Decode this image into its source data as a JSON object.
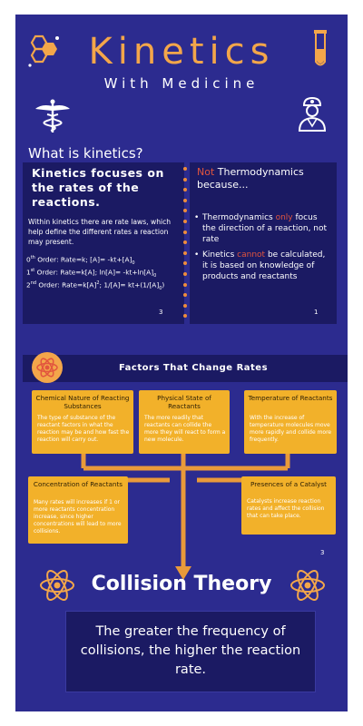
{
  "header": {
    "title": "Kinetics",
    "subtitle": "With Medicine",
    "icons": [
      "molecule-icon",
      "test-tube-icon",
      "caduceus-icon",
      "doctor-icon"
    ]
  },
  "what": {
    "heading": "What is kinetics?",
    "left": {
      "headline": "Kinetics focuses on the rates of the reactions.",
      "body": "Within kinetics there are rate laws, which help define the different rates a reaction may present.",
      "law0": {
        "ord": "0",
        "sup": "th",
        "text": " Order: Rate=k; [A]= -kt+[A]",
        "sub": "0"
      },
      "law1": {
        "ord": "1",
        "sup": "st",
        "text": " Order: Rate=k[A]; ln[A]= -kt+ln[A]",
        "sub": "0"
      },
      "law2": {
        "ord": "2",
        "sup": "nd",
        "text": " Order: Rate=k[A]",
        "sup2": "2",
        "text2": "; 1/[A]= kt+(1/[A]",
        "sub": "0",
        "end": ")"
      },
      "page": "3"
    },
    "right": {
      "not": "Not",
      "rest": " Thermodynamics because...",
      "bullet1_a": "Thermodynamics ",
      "bullet1_only": "only",
      "bullet1_b": " focus the direction of a reaction, not rate",
      "bullet2_a": "Kinetics ",
      "bullet2_cannot": "cannot",
      "bullet2_b": " be calculated, it is based on knowledge of products and reactants",
      "page": "1"
    }
  },
  "factors": {
    "heading": "Factors That Change Rates",
    "cards": [
      {
        "title": "Chemical Nature of Reacting Substances",
        "body": "The type of substance of the reactant factors in what the reaction may be and how fast the reaction will carry out."
      },
      {
        "title": "Physical State of Reactants",
        "body": "The more readily that reactants can collide the more they will react to form a new molecule."
      },
      {
        "title": "Temperature of Reactants",
        "body": "With the increase of temperature molecules move more rapidly and collide more frequently."
      },
      {
        "title": "Concentration of Reactants",
        "body": "Many rates will increases if 1 or more reactants concentration increase, since higher concentrations will lead to more collisions."
      },
      {
        "title": "Presences of a Catalyst",
        "body": "Catalysts increase reaction rates and affect the collision that can take place."
      }
    ],
    "page": "3"
  },
  "collision": {
    "heading": "Collision Theory",
    "statement": "The greater the frequency of collisions, the higher the reaction rate."
  },
  "colors": {
    "background": "#2c2b8f",
    "panel": "#1b1a63",
    "accent_orange": "#f3a64a",
    "card_yellow": "#f2b12a",
    "warning_red": "#e2553e"
  }
}
